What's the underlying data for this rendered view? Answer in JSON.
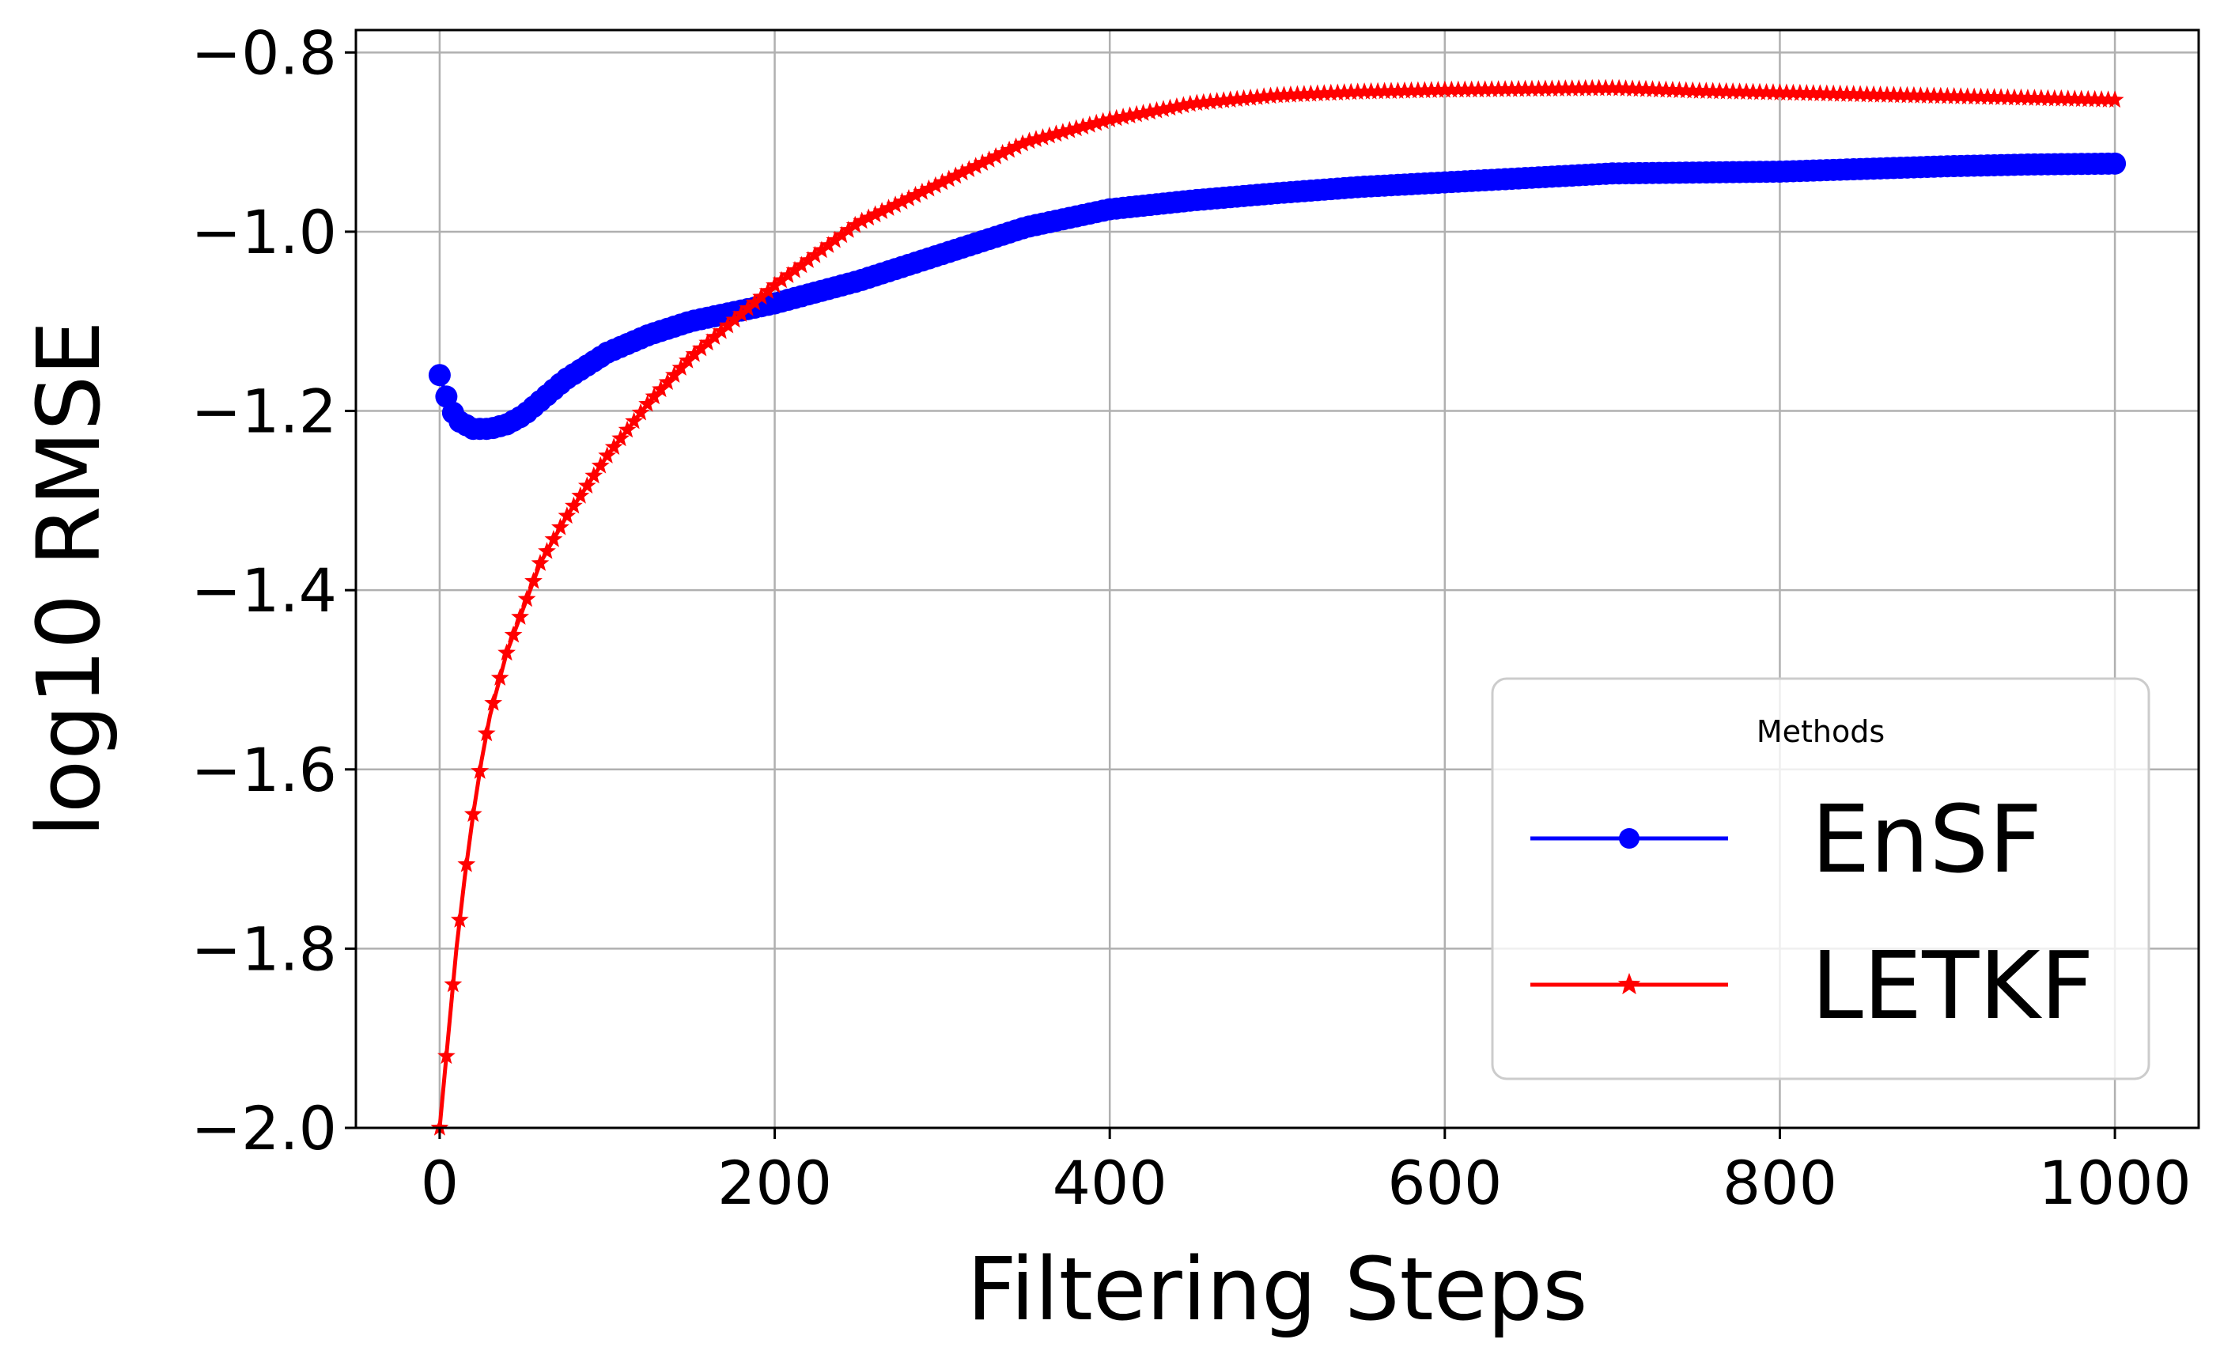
{
  "chart_data": {
    "type": "line",
    "xlabel": "Filtering Steps",
    "ylabel": "log10 RMSE",
    "xlim": [
      -50,
      1050
    ],
    "ylim": [
      -2.0,
      -0.775
    ],
    "xticks": [
      0,
      200,
      400,
      600,
      800,
      1000
    ],
    "yticks": [
      -2.0,
      -1.8,
      -1.6,
      -1.4,
      -1.2,
      -1.0,
      -0.8
    ],
    "ytick_labels": [
      "−2.0",
      "−1.8",
      "−1.6",
      "−1.4",
      "−1.2",
      "−1.0",
      "−0.8"
    ],
    "xtick_labels": [
      "0",
      "200",
      "400",
      "600",
      "800",
      "1000"
    ],
    "grid": true,
    "legend": {
      "title": "Methods",
      "placement": "lower-right"
    },
    "series": [
      {
        "name": "EnSF",
        "color": "#0000ff",
        "marker": "circle",
        "x": [
          0,
          5,
          10,
          15,
          20,
          30,
          40,
          50,
          75,
          100,
          125,
          150,
          175,
          200,
          250,
          300,
          350,
          400,
          450,
          500,
          550,
          600,
          650,
          700,
          750,
          800,
          850,
          900,
          950,
          1000
        ],
        "y": [
          -1.16,
          -1.19,
          -1.21,
          -1.215,
          -1.22,
          -1.22,
          -1.215,
          -1.205,
          -1.165,
          -1.135,
          -1.115,
          -1.1,
          -1.09,
          -1.08,
          -1.055,
          -1.025,
          -0.995,
          -0.975,
          -0.965,
          -0.957,
          -0.95,
          -0.945,
          -0.94,
          -0.935,
          -0.934,
          -0.933,
          -0.93,
          -0.927,
          -0.925,
          -0.924
        ]
      },
      {
        "name": "LETKF",
        "color": "#ff0000",
        "marker": "star",
        "x": [
          0,
          5,
          10,
          15,
          20,
          25,
          30,
          40,
          50,
          60,
          75,
          100,
          125,
          150,
          175,
          200,
          250,
          300,
          350,
          400,
          450,
          500,
          550,
          600,
          650,
          700,
          750,
          800,
          850,
          900,
          950,
          1000
        ],
        "y": [
          -2.0,
          -1.9,
          -1.8,
          -1.72,
          -1.65,
          -1.59,
          -1.54,
          -1.47,
          -1.42,
          -1.37,
          -1.32,
          -1.25,
          -1.19,
          -1.14,
          -1.1,
          -1.06,
          -0.99,
          -0.945,
          -0.9,
          -0.875,
          -0.857,
          -0.848,
          -0.844,
          -0.842,
          -0.841,
          -0.84,
          -0.843,
          -0.845,
          -0.847,
          -0.849,
          -0.851,
          -0.853
        ]
      }
    ]
  }
}
